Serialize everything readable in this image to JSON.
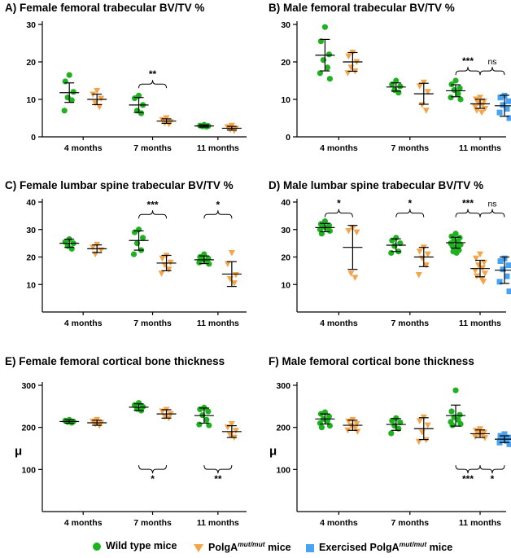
{
  "legend": {
    "wild_type": "Wild type mice",
    "polga_prefix": "PolgA",
    "polga_sup": "mut/mut",
    "polga_suffix": " mice",
    "exercised_prefix": "Exercised PolgA",
    "exercised_sup": "mut/mut",
    "exercised_suffix": " mice"
  },
  "colors": {
    "wild_type": "#1fb11f",
    "polga": "#f4a54c",
    "exercised": "#4aa3f0"
  },
  "chart_data": [
    {
      "panel": "A)",
      "title": "Female femoral trabecular BV/TV %",
      "type": "scatter",
      "ylim": [
        0,
        30
      ],
      "yticks": [
        0,
        10,
        20,
        30
      ],
      "ylabel": "",
      "categories": [
        "4 months",
        "7 months",
        "11 months"
      ],
      "groups": [
        {
          "cat": 0,
          "series": "wt",
          "mean": 11.8,
          "sd": 2.6,
          "points": [
            16.5,
            14.8,
            12.0,
            10.5,
            9.8,
            7.0
          ]
        },
        {
          "cat": 0,
          "series": "polga",
          "mean": 10.0,
          "sd": 1.4,
          "points": [
            12.3,
            11.3,
            10.2,
            9.0,
            8.0
          ]
        },
        {
          "cat": 1,
          "series": "wt",
          "mean": 8.5,
          "sd": 2.0,
          "points": [
            11.0,
            10.3,
            8.5,
            7.0,
            6.3
          ]
        },
        {
          "cat": 1,
          "series": "polga",
          "mean": 4.2,
          "sd": 0.6,
          "points": [
            5.0,
            4.5,
            4.0,
            3.7,
            3.4
          ]
        },
        {
          "cat": 2,
          "series": "wt",
          "mean": 2.9,
          "sd": 0.3,
          "points": [
            3.2,
            3.0,
            2.9,
            2.8,
            2.7
          ]
        },
        {
          "cat": 2,
          "series": "polga",
          "mean": 2.3,
          "sd": 0.5,
          "points": [
            3.0,
            2.6,
            2.2,
            1.9,
            1.6
          ]
        }
      ],
      "brackets": [
        {
          "label": "**",
          "from": [
            1,
            "wt"
          ],
          "to": [
            1,
            "polga"
          ],
          "y": 13.0,
          "dir": "up"
        }
      ]
    },
    {
      "panel": "B)",
      "title": "Male femoral trabecular BV/TV %",
      "type": "scatter",
      "ylim": [
        0,
        30
      ],
      "yticks": [
        0,
        10,
        20,
        30
      ],
      "ylabel": "",
      "categories": [
        "4 months",
        "7 months",
        "11 months"
      ],
      "groups": [
        {
          "cat": 0,
          "series": "wt",
          "mean": 21.8,
          "sd": 4.2,
          "points": [
            29.3,
            25.5,
            22.0,
            20.5,
            18.5,
            17.0,
            15.5
          ]
        },
        {
          "cat": 0,
          "series": "polga",
          "mean": 20.0,
          "sd": 2.5,
          "points": [
            22.5,
            21.5,
            20.0,
            18.5,
            17.5,
            17.0
          ]
        },
        {
          "cat": 1,
          "series": "wt",
          "mean": 13.3,
          "sd": 1.1,
          "points": [
            15.0,
            14.0,
            13.5,
            12.5,
            11.8
          ]
        },
        {
          "cat": 1,
          "series": "polga",
          "mean": 11.5,
          "sd": 2.8,
          "points": [
            14.5,
            13.5,
            12.0,
            8.5,
            7.0
          ]
        },
        {
          "cat": 2,
          "series": "wt",
          "mean": 12.3,
          "sd": 1.6,
          "points": [
            15.0,
            14.0,
            13.0,
            12.5,
            11.5,
            10.5,
            10.0
          ]
        },
        {
          "cat": 2,
          "series": "polga",
          "mean": 8.8,
          "sd": 1.2,
          "points": [
            10.5,
            10.0,
            9.5,
            9.0,
            8.5,
            8.0,
            7.5,
            7.0,
            6.5
          ]
        },
        {
          "cat": 2,
          "series": "exercised",
          "mean": 8.3,
          "sd": 2.8,
          "points": [
            11.0,
            10.5,
            9.5,
            8.5,
            7.5,
            6.5,
            5.0
          ]
        }
      ],
      "brackets": [
        {
          "label": "***",
          "from": [
            2,
            "wt"
          ],
          "to": [
            2,
            "polga"
          ],
          "y": 16.5,
          "dir": "up"
        },
        {
          "label": "ns",
          "from": [
            2,
            "polga"
          ],
          "to": [
            2,
            "exercised"
          ],
          "y": 16.5,
          "dir": "up"
        }
      ]
    },
    {
      "panel": "C)",
      "title": "Female lumbar spine trabecular BV/TV %",
      "type": "scatter",
      "ylim": [
        0,
        40
      ],
      "yticks": [
        10,
        20,
        30,
        40
      ],
      "ylabel": "",
      "categories": [
        "4 months",
        "7 months",
        "11 months"
      ],
      "groups": [
        {
          "cat": 0,
          "series": "wt",
          "mean": 25.0,
          "sd": 1.5,
          "points": [
            26.5,
            25.5,
            25.0,
            24.0,
            23.0
          ]
        },
        {
          "cat": 0,
          "series": "polga",
          "mean": 23.0,
          "sd": 1.4,
          "points": [
            24.5,
            23.5,
            22.5,
            21.0
          ]
        },
        {
          "cat": 1,
          "series": "wt",
          "mean": 26.0,
          "sd": 3.5,
          "points": [
            30.0,
            29.0,
            27.0,
            25.0,
            22.5,
            21.0
          ]
        },
        {
          "cat": 1,
          "series": "polga",
          "mean": 17.8,
          "sd": 2.8,
          "points": [
            20.5,
            19.5,
            18.0,
            17.0,
            15.5,
            14.0
          ]
        },
        {
          "cat": 2,
          "series": "wt",
          "mean": 19.0,
          "sd": 1.4,
          "points": [
            21.0,
            20.0,
            19.5,
            19.0,
            18.5,
            18.0,
            17.5
          ]
        },
        {
          "cat": 2,
          "series": "polga",
          "mean": 13.8,
          "sd": 4.5,
          "points": [
            21.5,
            17.5,
            13.5,
            12.0,
            10.5
          ]
        }
      ],
      "brackets": [
        {
          "label": "***",
          "from": [
            1,
            "wt"
          ],
          "to": [
            1,
            "polga"
          ],
          "y": 34.0,
          "dir": "up"
        },
        {
          "label": "*",
          "from": [
            2,
            "wt"
          ],
          "to": [
            2,
            "polga"
          ],
          "y": 34.0,
          "dir": "up"
        }
      ]
    },
    {
      "panel": "D)",
      "title": "Male lumbar spine trabecular BV/TV %",
      "type": "scatter",
      "ylim": [
        0,
        40
      ],
      "yticks": [
        10,
        20,
        30,
        40
      ],
      "ylabel": "",
      "categories": [
        "4 months",
        "7 months",
        "11 months"
      ],
      "groups": [
        {
          "cat": 0,
          "series": "wt",
          "mean": 30.7,
          "sd": 1.5,
          "points": [
            33.0,
            32.0,
            31.5,
            31.0,
            30.5,
            30.0,
            29.5,
            28.5
          ]
        },
        {
          "cat": 0,
          "series": "polga",
          "mean": 23.5,
          "sd": 8.0,
          "points": [
            30.5,
            29.5,
            29.0,
            14.0,
            12.5
          ]
        },
        {
          "cat": 1,
          "series": "wt",
          "mean": 24.3,
          "sd": 2.3,
          "points": [
            27.0,
            26.0,
            25.0,
            24.0,
            22.0,
            21.5
          ]
        },
        {
          "cat": 1,
          "series": "polga",
          "mean": 20.0,
          "sd": 3.5,
          "points": [
            23.5,
            22.0,
            21.0,
            19.5,
            17.0,
            13.5
          ]
        },
        {
          "cat": 2,
          "series": "wt",
          "mean": 25.2,
          "sd": 2.0,
          "points": [
            28.5,
            27.5,
            27.0,
            26.0,
            25.5,
            25.0,
            24.5,
            24.0,
            23.5,
            22.5,
            22.0,
            21.5
          ]
        },
        {
          "cat": 2,
          "series": "polga",
          "mean": 15.8,
          "sd": 3.0,
          "points": [
            21.0,
            19.5,
            18.0,
            17.0,
            16.0,
            15.0,
            14.0,
            13.0,
            12.0,
            11.0
          ]
        },
        {
          "cat": 2,
          "series": "exercised",
          "mean": 15.2,
          "sd": 4.8,
          "points": [
            19.5,
            18.5,
            17.0,
            15.5,
            13.0,
            11.0,
            7.5
          ]
        }
      ],
      "brackets": [
        {
          "label": "*",
          "from": [
            0,
            "wt"
          ],
          "to": [
            0,
            "polga"
          ],
          "y": 34.5,
          "dir": "up"
        },
        {
          "label": "*",
          "from": [
            1,
            "wt"
          ],
          "to": [
            1,
            "polga"
          ],
          "y": 34.5,
          "dir": "up"
        },
        {
          "label": "***",
          "from": [
            2,
            "wt"
          ],
          "to": [
            2,
            "polga"
          ],
          "y": 34.5,
          "dir": "up"
        },
        {
          "label": "ns",
          "from": [
            2,
            "polga"
          ],
          "to": [
            2,
            "exercised"
          ],
          "y": 34.5,
          "dir": "up"
        }
      ]
    },
    {
      "panel": "E)",
      "title": "Female femoral cortical bone thickness",
      "type": "scatter",
      "ylim": [
        0,
        300
      ],
      "yticks": [
        100,
        200,
        300
      ],
      "ylabel": "μ",
      "categories": [
        "4 months",
        "7 months",
        "11 months"
      ],
      "groups": [
        {
          "cat": 0,
          "series": "wt",
          "mean": 214,
          "sd": 4,
          "points": [
            218,
            216,
            214,
            213,
            211
          ]
        },
        {
          "cat": 0,
          "series": "polga",
          "mean": 211,
          "sd": 6,
          "points": [
            218,
            214,
            211,
            208,
            204
          ]
        },
        {
          "cat": 1,
          "series": "wt",
          "mean": 248,
          "sd": 8,
          "points": [
            258,
            253,
            249,
            244,
            240
          ]
        },
        {
          "cat": 1,
          "series": "polga",
          "mean": 232,
          "sd": 10,
          "points": [
            242,
            238,
            232,
            226,
            222
          ]
        },
        {
          "cat": 2,
          "series": "wt",
          "mean": 228,
          "sd": 18,
          "points": [
            247,
            243,
            238,
            229,
            218,
            207,
            205
          ]
        },
        {
          "cat": 2,
          "series": "polga",
          "mean": 190,
          "sd": 14,
          "points": [
            208,
            200,
            192,
            182,
            176
          ]
        }
      ],
      "brackets": [
        {
          "label": "*",
          "from": [
            1,
            "wt"
          ],
          "to": [
            1,
            "polga"
          ],
          "y": 110,
          "dir": "down"
        },
        {
          "label": "**",
          "from": [
            2,
            "wt"
          ],
          "to": [
            2,
            "polga"
          ],
          "y": 110,
          "dir": "down"
        }
      ]
    },
    {
      "panel": "F)",
      "title": "Male femoral cortical bone thickness",
      "type": "scatter",
      "ylim": [
        0,
        300
      ],
      "yticks": [
        100,
        200,
        300
      ],
      "ylabel": "μ",
      "categories": [
        "4 months",
        "7 months",
        "11 months"
      ],
      "groups": [
        {
          "cat": 0,
          "series": "wt",
          "mean": 220,
          "sd": 12,
          "points": [
            236,
            232,
            226,
            220,
            216,
            210,
            204,
            200
          ]
        },
        {
          "cat": 0,
          "series": "polga",
          "mean": 205,
          "sd": 12,
          "points": [
            218,
            214,
            208,
            204,
            198,
            193,
            190
          ]
        },
        {
          "cat": 1,
          "series": "wt",
          "mean": 207,
          "sd": 14,
          "points": [
            222,
            216,
            212,
            204,
            197,
            186
          ]
        },
        {
          "cat": 1,
          "series": "polga",
          "mean": 197,
          "sd": 26,
          "points": [
            224,
            215,
            205,
            188,
            170,
            166
          ]
        },
        {
          "cat": 2,
          "series": "wt",
          "mean": 228,
          "sd": 25,
          "points": [
            288,
            238,
            230,
            224,
            218,
            213,
            208,
            205
          ]
        },
        {
          "cat": 2,
          "series": "polga",
          "mean": 185,
          "sd": 9,
          "points": [
            196,
            192,
            188,
            185,
            182,
            178,
            175
          ]
        },
        {
          "cat": 2,
          "series": "exercised",
          "mean": 172,
          "sd": 8,
          "points": [
            184,
            180,
            176,
            172,
            168,
            164,
            160
          ]
        }
      ],
      "brackets": [
        {
          "label": "***",
          "from": [
            2,
            "wt"
          ],
          "to": [
            2,
            "polga"
          ],
          "y": 110,
          "dir": "down"
        },
        {
          "label": "*",
          "from": [
            2,
            "polga"
          ],
          "to": [
            2,
            "exercised"
          ],
          "y": 110,
          "dir": "down"
        }
      ]
    }
  ]
}
